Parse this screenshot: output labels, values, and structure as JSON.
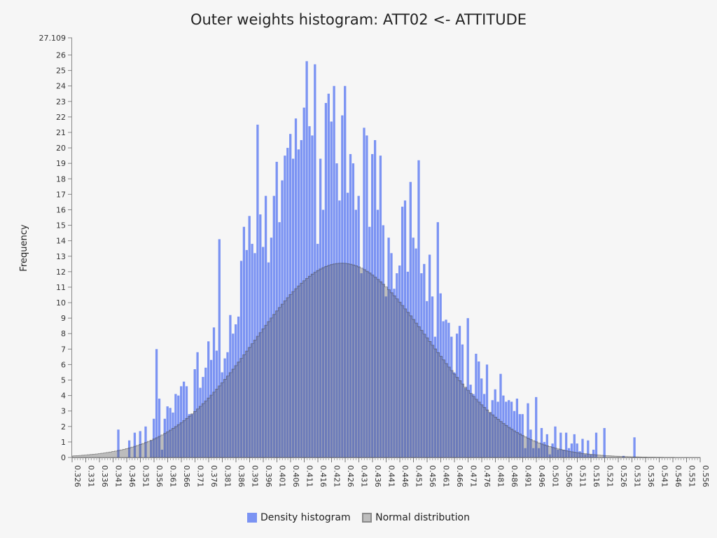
{
  "chart_data": {
    "type": "bar",
    "title": "Outer weights histogram: ATT02 <- ATTITUDE",
    "ylabel": "Frequency",
    "xlabel": "",
    "xlim": [
      0.326,
      0.556
    ],
    "ylim": [
      0,
      27.109
    ],
    "y_top_label": "27.109",
    "y_ticks": [
      0,
      1,
      2,
      3,
      4,
      5,
      6,
      7,
      8,
      9,
      10,
      11,
      12,
      13,
      14,
      15,
      16,
      17,
      18,
      19,
      20,
      21,
      22,
      23,
      24,
      25,
      26
    ],
    "x_tick_labels": [
      "0.326",
      "0.331",
      "0.336",
      "0.341",
      "0.346",
      "0.351",
      "0.356",
      "0.361",
      "0.366",
      "0.371",
      "0.376",
      "0.381",
      "0.386",
      "0.391",
      "0.396",
      "0.401",
      "0.406",
      "0.411",
      "0.416",
      "0.421",
      "0.426",
      "0.431",
      "0.436",
      "0.441",
      "0.446",
      "0.451",
      "0.456",
      "0.461",
      "0.466",
      "0.471",
      "0.476",
      "0.481",
      "0.486",
      "0.491",
      "0.496",
      "0.501",
      "0.506",
      "0.511",
      "0.516",
      "0.521",
      "0.526",
      "0.531",
      "0.536",
      "0.541",
      "0.546",
      "0.551",
      "0.556"
    ],
    "bin_width": 0.001,
    "grid": false,
    "legend_position": "bottom",
    "series": [
      {
        "name": "Density histogram",
        "color": "#7b93f3",
        "points": [
          [
            0.343,
            1.8
          ],
          [
            0.347,
            1.1
          ],
          [
            0.349,
            1.6
          ],
          [
            0.351,
            1.7
          ],
          [
            0.353,
            2.0
          ],
          [
            0.355,
            1.1
          ],
          [
            0.356,
            2.5
          ],
          [
            0.357,
            7.0
          ],
          [
            0.358,
            3.8
          ],
          [
            0.359,
            0.5
          ],
          [
            0.36,
            2.5
          ],
          [
            0.361,
            3.3
          ],
          [
            0.362,
            3.2
          ],
          [
            0.363,
            2.9
          ],
          [
            0.364,
            4.1
          ],
          [
            0.365,
            4.0
          ],
          [
            0.366,
            4.6
          ],
          [
            0.367,
            4.9
          ],
          [
            0.368,
            4.6
          ],
          [
            0.369,
            2.8
          ],
          [
            0.37,
            2.8
          ],
          [
            0.371,
            5.7
          ],
          [
            0.372,
            6.8
          ],
          [
            0.373,
            4.5
          ],
          [
            0.374,
            5.2
          ],
          [
            0.375,
            5.8
          ],
          [
            0.376,
            7.5
          ],
          [
            0.377,
            6.3
          ],
          [
            0.378,
            8.4
          ],
          [
            0.379,
            6.9
          ],
          [
            0.38,
            14.1
          ],
          [
            0.381,
            5.5
          ],
          [
            0.382,
            6.4
          ],
          [
            0.383,
            6.8
          ],
          [
            0.384,
            9.2
          ],
          [
            0.385,
            8.0
          ],
          [
            0.386,
            8.6
          ],
          [
            0.387,
            9.1
          ],
          [
            0.388,
            12.7
          ],
          [
            0.389,
            14.9
          ],
          [
            0.39,
            13.4
          ],
          [
            0.391,
            15.6
          ],
          [
            0.392,
            13.8
          ],
          [
            0.393,
            13.2
          ],
          [
            0.394,
            21.5
          ],
          [
            0.395,
            15.7
          ],
          [
            0.396,
            13.6
          ],
          [
            0.397,
            16.9
          ],
          [
            0.398,
            12.6
          ],
          [
            0.399,
            14.2
          ],
          [
            0.4,
            16.9
          ],
          [
            0.401,
            19.1
          ],
          [
            0.402,
            15.2
          ],
          [
            0.403,
            17.9
          ],
          [
            0.404,
            19.5
          ],
          [
            0.405,
            20.0
          ],
          [
            0.406,
            20.9
          ],
          [
            0.407,
            19.3
          ],
          [
            0.408,
            21.9
          ],
          [
            0.409,
            19.9
          ],
          [
            0.41,
            20.5
          ],
          [
            0.411,
            22.6
          ],
          [
            0.412,
            25.6
          ],
          [
            0.413,
            21.4
          ],
          [
            0.414,
            20.8
          ],
          [
            0.415,
            25.4
          ],
          [
            0.416,
            13.8
          ],
          [
            0.417,
            19.3
          ],
          [
            0.418,
            16.0
          ],
          [
            0.419,
            22.9
          ],
          [
            0.42,
            23.5
          ],
          [
            0.421,
            21.7
          ],
          [
            0.422,
            24.0
          ],
          [
            0.423,
            19.0
          ],
          [
            0.424,
            16.6
          ],
          [
            0.425,
            22.1
          ],
          [
            0.426,
            24.0
          ],
          [
            0.427,
            17.1
          ],
          [
            0.428,
            19.6
          ],
          [
            0.429,
            19.0
          ],
          [
            0.43,
            16.0
          ],
          [
            0.431,
            16.9
          ],
          [
            0.432,
            11.9
          ],
          [
            0.433,
            21.3
          ],
          [
            0.434,
            20.8
          ],
          [
            0.435,
            14.9
          ],
          [
            0.436,
            19.6
          ],
          [
            0.437,
            20.5
          ],
          [
            0.438,
            16.0
          ],
          [
            0.439,
            19.5
          ],
          [
            0.44,
            15.0
          ],
          [
            0.441,
            10.4
          ],
          [
            0.442,
            14.2
          ],
          [
            0.443,
            13.2
          ],
          [
            0.444,
            10.9
          ],
          [
            0.445,
            11.9
          ],
          [
            0.446,
            12.4
          ],
          [
            0.447,
            16.2
          ],
          [
            0.448,
            16.6
          ],
          [
            0.449,
            12.0
          ],
          [
            0.45,
            17.8
          ],
          [
            0.451,
            14.2
          ],
          [
            0.452,
            13.5
          ],
          [
            0.453,
            19.2
          ],
          [
            0.454,
            11.9
          ],
          [
            0.455,
            12.5
          ],
          [
            0.456,
            10.1
          ],
          [
            0.457,
            13.1
          ],
          [
            0.458,
            10.4
          ],
          [
            0.459,
            7.8
          ],
          [
            0.46,
            15.2
          ],
          [
            0.461,
            10.6
          ],
          [
            0.462,
            8.8
          ],
          [
            0.463,
            8.9
          ],
          [
            0.464,
            8.7
          ],
          [
            0.465,
            7.8
          ],
          [
            0.466,
            5.5
          ],
          [
            0.467,
            8.0
          ],
          [
            0.468,
            8.5
          ],
          [
            0.469,
            7.3
          ],
          [
            0.47,
            4.5
          ],
          [
            0.471,
            9.0
          ],
          [
            0.472,
            4.7
          ],
          [
            0.473,
            4.1
          ],
          [
            0.474,
            6.7
          ],
          [
            0.475,
            6.2
          ],
          [
            0.476,
            5.1
          ],
          [
            0.477,
            4.1
          ],
          [
            0.478,
            6.0
          ],
          [
            0.479,
            2.9
          ],
          [
            0.48,
            3.7
          ],
          [
            0.481,
            4.4
          ],
          [
            0.482,
            3.6
          ],
          [
            0.483,
            5.4
          ],
          [
            0.484,
            4.0
          ],
          [
            0.485,
            3.6
          ],
          [
            0.486,
            3.7
          ],
          [
            0.487,
            3.6
          ],
          [
            0.488,
            3.0
          ],
          [
            0.489,
            3.8
          ],
          [
            0.49,
            2.8
          ],
          [
            0.491,
            2.8
          ],
          [
            0.492,
            0.6
          ],
          [
            0.493,
            3.5
          ],
          [
            0.494,
            1.8
          ],
          [
            0.495,
            0.6
          ],
          [
            0.496,
            3.9
          ],
          [
            0.497,
            0.6
          ],
          [
            0.498,
            1.9
          ],
          [
            0.499,
            1.0
          ],
          [
            0.5,
            1.5
          ],
          [
            0.501,
            0.2
          ],
          [
            0.502,
            0.9
          ],
          [
            0.503,
            2.0
          ],
          [
            0.504,
            0.5
          ],
          [
            0.505,
            1.6
          ],
          [
            0.506,
            0.5
          ],
          [
            0.507,
            1.6
          ],
          [
            0.508,
            0.6
          ],
          [
            0.509,
            0.9
          ],
          [
            0.51,
            1.5
          ],
          [
            0.511,
            0.9
          ],
          [
            0.512,
            0.4
          ],
          [
            0.513,
            1.2
          ],
          [
            0.514,
            0.2
          ],
          [
            0.515,
            1.1
          ],
          [
            0.516,
            0.2
          ],
          [
            0.517,
            0.5
          ],
          [
            0.518,
            1.6
          ],
          [
            0.521,
            1.9
          ],
          [
            0.528,
            0.1
          ],
          [
            0.532,
            1.3
          ]
        ]
      },
      {
        "name": "Normal distribution",
        "color": "#9a9a9a",
        "mean": 0.4248,
        "sd": 0.0317,
        "peak": 12.55,
        "bin_width": 0.001,
        "x_range": [
          0.326,
          0.556
        ]
      }
    ]
  },
  "legend": {
    "items": [
      {
        "label": "Density histogram",
        "color": "#7b93f3"
      },
      {
        "label": "Normal distribution",
        "color": "#9a9a9a"
      }
    ]
  }
}
